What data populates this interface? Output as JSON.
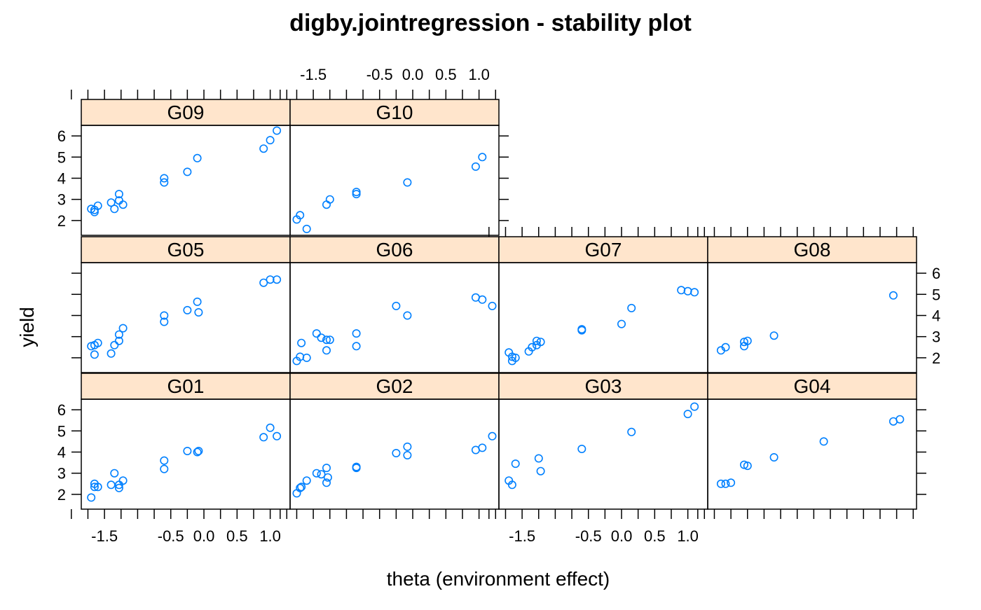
{
  "chart_data": {
    "type": "scatter",
    "title": "digby.jointregression - stability plot",
    "xlabel": "theta (environment effect)",
    "ylabel": "yield",
    "xlim": [
      -1.85,
      1.3
    ],
    "ylim": [
      1.3,
      6.5
    ],
    "x_ticks": [
      -2.0,
      -1.75,
      -1.5,
      -1.25,
      -1.0,
      -0.75,
      -0.5,
      -0.25,
      0.0,
      0.25,
      0.5,
      0.75,
      1.0,
      1.25
    ],
    "x_tick_labels": [
      {
        "value": -1.5,
        "label": "-1.5"
      },
      {
        "value": -0.5,
        "label": "-0.5"
      },
      {
        "value": 0.0,
        "label": "0.0"
      },
      {
        "value": 0.5,
        "label": "0.5"
      },
      {
        "value": 1.0,
        "label": "1.0"
      }
    ],
    "y_ticks": [
      2,
      3,
      4,
      5,
      6
    ],
    "y_tick_labels": [
      "2",
      "3",
      "4",
      "5",
      "6"
    ],
    "colors": {
      "strip": "#ffe5cc",
      "point": "#0080ff",
      "axis": "#000000"
    },
    "layout": "4 columns x 3 rows, panels G01-G04 bottom row, G05-G08 middle row, G09-G10 top row",
    "panels": [
      {
        "name": "G01",
        "points": [
          [
            -1.7,
            1.85
          ],
          [
            -1.65,
            2.35
          ],
          [
            -1.65,
            2.5
          ],
          [
            -1.6,
            2.35
          ],
          [
            -1.4,
            2.45
          ],
          [
            -1.35,
            3.0
          ],
          [
            -1.28,
            2.45
          ],
          [
            -1.28,
            2.3
          ],
          [
            -1.22,
            2.65
          ],
          [
            -0.6,
            3.2
          ],
          [
            -0.6,
            3.6
          ],
          [
            -0.25,
            4.05
          ],
          [
            -0.1,
            4.0
          ],
          [
            -0.08,
            4.05
          ],
          [
            0.9,
            4.7
          ],
          [
            1.0,
            5.15
          ],
          [
            1.1,
            4.75
          ]
        ]
      },
      {
        "name": "G02",
        "points": [
          [
            -1.75,
            2.05
          ],
          [
            -1.7,
            2.3
          ],
          [
            -1.68,
            2.35
          ],
          [
            -1.6,
            2.65
          ],
          [
            -1.45,
            3.0
          ],
          [
            -1.38,
            2.95
          ],
          [
            -1.3,
            3.25
          ],
          [
            -1.3,
            2.55
          ],
          [
            -1.28,
            2.8
          ],
          [
            -0.85,
            3.3
          ],
          [
            -0.85,
            3.25
          ],
          [
            -0.25,
            3.95
          ],
          [
            -0.08,
            4.25
          ],
          [
            -0.08,
            3.85
          ],
          [
            0.95,
            4.1
          ],
          [
            1.05,
            4.2
          ],
          [
            1.2,
            4.75
          ]
        ]
      },
      {
        "name": "G03",
        "points": [
          [
            -1.7,
            2.65
          ],
          [
            -1.65,
            2.45
          ],
          [
            -1.6,
            3.45
          ],
          [
            -1.25,
            3.7
          ],
          [
            -1.22,
            3.1
          ],
          [
            -0.6,
            4.15
          ],
          [
            0.15,
            4.95
          ],
          [
            1.0,
            5.8
          ],
          [
            1.1,
            6.15
          ]
        ]
      },
      {
        "name": "G04",
        "points": [
          [
            -1.65,
            2.5
          ],
          [
            -1.58,
            2.5
          ],
          [
            -1.5,
            2.55
          ],
          [
            -1.3,
            3.4
          ],
          [
            -1.25,
            3.35
          ],
          [
            -0.85,
            3.75
          ],
          [
            -0.1,
            4.5
          ],
          [
            0.95,
            5.45
          ],
          [
            1.05,
            5.55
          ]
        ]
      },
      {
        "name": "G05",
        "points": [
          [
            -1.7,
            2.55
          ],
          [
            -1.65,
            2.6
          ],
          [
            -1.65,
            2.15
          ],
          [
            -1.6,
            2.7
          ],
          [
            -1.4,
            2.2
          ],
          [
            -1.35,
            2.6
          ],
          [
            -1.28,
            2.8
          ],
          [
            -1.28,
            3.1
          ],
          [
            -1.22,
            3.4
          ],
          [
            -0.6,
            4.0
          ],
          [
            -0.6,
            3.7
          ],
          [
            -0.25,
            4.25
          ],
          [
            -0.1,
            4.65
          ],
          [
            -0.08,
            4.15
          ],
          [
            0.9,
            5.55
          ],
          [
            1.0,
            5.7
          ],
          [
            1.1,
            5.7
          ]
        ]
      },
      {
        "name": "G06",
        "points": [
          [
            -1.75,
            1.85
          ],
          [
            -1.7,
            2.05
          ],
          [
            -1.68,
            2.7
          ],
          [
            -1.6,
            2.0
          ],
          [
            -1.45,
            3.15
          ],
          [
            -1.38,
            2.95
          ],
          [
            -1.3,
            2.85
          ],
          [
            -1.3,
            2.35
          ],
          [
            -1.25,
            2.85
          ],
          [
            -0.85,
            3.15
          ],
          [
            -0.85,
            2.55
          ],
          [
            -0.25,
            4.45
          ],
          [
            -0.08,
            4.0
          ],
          [
            0.95,
            4.85
          ],
          [
            1.05,
            4.75
          ],
          [
            1.2,
            4.45
          ]
        ]
      },
      {
        "name": "G07",
        "points": [
          [
            -1.7,
            2.25
          ],
          [
            -1.65,
            1.85
          ],
          [
            -1.65,
            2.05
          ],
          [
            -1.6,
            2.0
          ],
          [
            -1.4,
            2.3
          ],
          [
            -1.35,
            2.5
          ],
          [
            -1.28,
            2.6
          ],
          [
            -1.28,
            2.8
          ],
          [
            -1.22,
            2.75
          ],
          [
            -0.6,
            3.35
          ],
          [
            -0.6,
            3.3
          ],
          [
            0.0,
            3.6
          ],
          [
            0.15,
            4.35
          ],
          [
            0.9,
            5.2
          ],
          [
            1.0,
            5.15
          ],
          [
            1.1,
            5.1
          ]
        ]
      },
      {
        "name": "G08",
        "points": [
          [
            -1.65,
            2.35
          ],
          [
            -1.58,
            2.5
          ],
          [
            -1.3,
            2.55
          ],
          [
            -1.3,
            2.75
          ],
          [
            -1.25,
            2.8
          ],
          [
            -0.85,
            3.05
          ],
          [
            0.95,
            4.95
          ]
        ]
      },
      {
        "name": "G09",
        "points": [
          [
            -1.7,
            2.55
          ],
          [
            -1.65,
            2.5
          ],
          [
            -1.65,
            2.4
          ],
          [
            -1.6,
            2.7
          ],
          [
            -1.4,
            2.85
          ],
          [
            -1.35,
            2.55
          ],
          [
            -1.28,
            3.25
          ],
          [
            -1.28,
            2.95
          ],
          [
            -1.22,
            2.75
          ],
          [
            -0.6,
            3.8
          ],
          [
            -0.6,
            4.0
          ],
          [
            -0.25,
            4.3
          ],
          [
            -0.1,
            4.95
          ],
          [
            0.9,
            5.4
          ],
          [
            1.0,
            5.8
          ],
          [
            1.1,
            6.25
          ]
        ]
      },
      {
        "name": "G10",
        "points": [
          [
            -1.75,
            2.05
          ],
          [
            -1.7,
            2.25
          ],
          [
            -1.6,
            1.6
          ],
          [
            -1.3,
            2.75
          ],
          [
            -1.25,
            3.0
          ],
          [
            -0.85,
            3.35
          ],
          [
            -0.85,
            3.25
          ],
          [
            -0.08,
            3.8
          ],
          [
            0.95,
            4.55
          ],
          [
            1.05,
            5.0
          ]
        ]
      }
    ]
  }
}
